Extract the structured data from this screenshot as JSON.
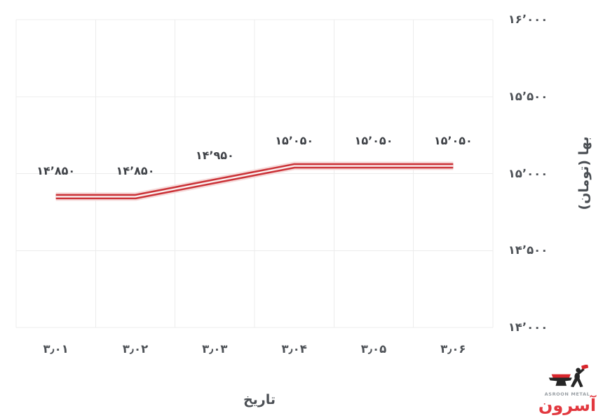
{
  "chart_data": {
    "type": "line",
    "title": "",
    "xlabel": "تاریخ",
    "ylabel": "بها (تومان)",
    "categories": [
      "۳٫۰۱",
      "۳٫۰۲",
      "۳٫۰۳",
      "۳٫۰۴",
      "۳٫۰۵",
      "۳٫۰۶"
    ],
    "values": [
      14850,
      14850,
      14950,
      15050,
      15050,
      15050
    ],
    "point_labels": [
      "۱۴٬۸۵۰",
      "۱۴٬۸۵۰",
      "۱۴٬۹۵۰",
      "۱۵٬۰۵۰",
      "۱۵٬۰۵۰",
      "۱۵٬۰۵۰"
    ],
    "ylim": [
      14000,
      16000
    ],
    "y_tick_values_top_to_bottom": [
      16000,
      15500,
      15000,
      14500,
      14000
    ],
    "y_tick_labels_top_to_bottom": [
      "۱۶٬۰۰۰",
      "۱۵٬۵۰۰",
      "۱۵٬۰۰۰",
      "۱۴٬۵۰۰",
      "۱۴٬۰۰۰"
    ],
    "grid": true,
    "legend_position": "none",
    "series_color": "#cb3338",
    "series_halo_color": "#f6dcdc",
    "series_core_color": "#fbf2f2",
    "grid_color": "#ececec"
  },
  "logo": {
    "brand_en": "ASROON METAL",
    "brand_fa": "آسرون",
    "accent_color": "#e2383f"
  }
}
